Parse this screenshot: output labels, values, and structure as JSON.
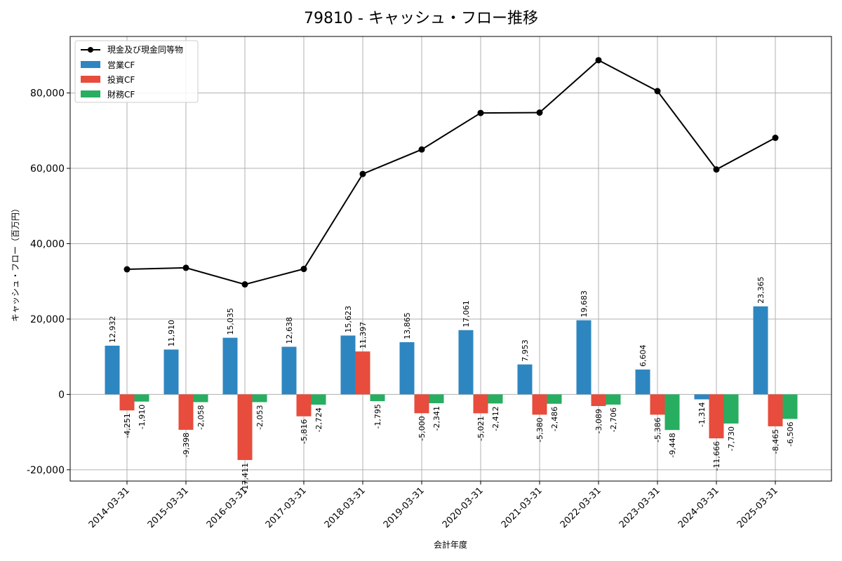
{
  "chart_data": {
    "type": "bar+line",
    "title": "79810 - キャッシュ・フロー推移",
    "xlabel": "会計年度",
    "ylabel": "キャッシュ・フロー（百万円）",
    "ylim": [
      -23000,
      95000
    ],
    "yticks": [
      -20000,
      0,
      20000,
      40000,
      60000,
      80000
    ],
    "ytick_labels": [
      "-20,000",
      "0",
      "20,000",
      "40,000",
      "60,000",
      "80,000"
    ],
    "grid": true,
    "legend_position": "top-left",
    "categories": [
      "2014-03-31",
      "2015-03-31",
      "2016-03-31",
      "2017-03-31",
      "2018-03-31",
      "2019-03-31",
      "2020-03-31",
      "2021-03-31",
      "2022-03-31",
      "2023-03-31",
      "2024-03-31",
      "2025-03-31"
    ],
    "line_series": {
      "name": "現金及び現金同等物",
      "color": "#000000",
      "values": [
        33200,
        33600,
        29200,
        33300,
        58500,
        65000,
        74700,
        74800,
        88700,
        80500,
        59700,
        68100
      ]
    },
    "series": [
      {
        "name": "営業CF",
        "color": "#2e86c1",
        "values": [
          12932,
          11910,
          15035,
          12638,
          15623,
          13865,
          17061,
          7953,
          19683,
          6604,
          -1314,
          23365
        ],
        "labels": [
          "12,932",
          "11,910",
          "15,035",
          "12,638",
          "15,623",
          "13,865",
          "17,061",
          "7,953",
          "19,683",
          "6,604",
          "-1,314",
          "23,365"
        ]
      },
      {
        "name": "投資CF",
        "color": "#e74c3c",
        "values": [
          -4251,
          -9398,
          -17411,
          -5816,
          11397,
          -5000,
          -5021,
          -5380,
          -3089,
          -5386,
          -11666,
          -8465
        ],
        "labels": [
          "-4,251",
          "-9,398",
          "-17,411",
          "-5,816",
          "11,397",
          "-5,000",
          "-5,021",
          "-5,380",
          "-3,089",
          "-5,386",
          "-11,666",
          "-8,465"
        ]
      },
      {
        "name": "財務CF",
        "color": "#27ae60",
        "values": [
          -1910,
          -2058,
          -2053,
          -2724,
          -1795,
          -2341,
          -2412,
          -2486,
          -2706,
          -9448,
          -7730,
          -6506
        ],
        "labels": [
          "-1,910",
          "-2,058",
          "-2,053",
          "-2,724",
          "-1,795",
          "-2,341",
          "-2,412",
          "-2,486",
          "-2,706",
          "-9,448",
          "-7,730",
          "-6,506"
        ]
      }
    ]
  }
}
